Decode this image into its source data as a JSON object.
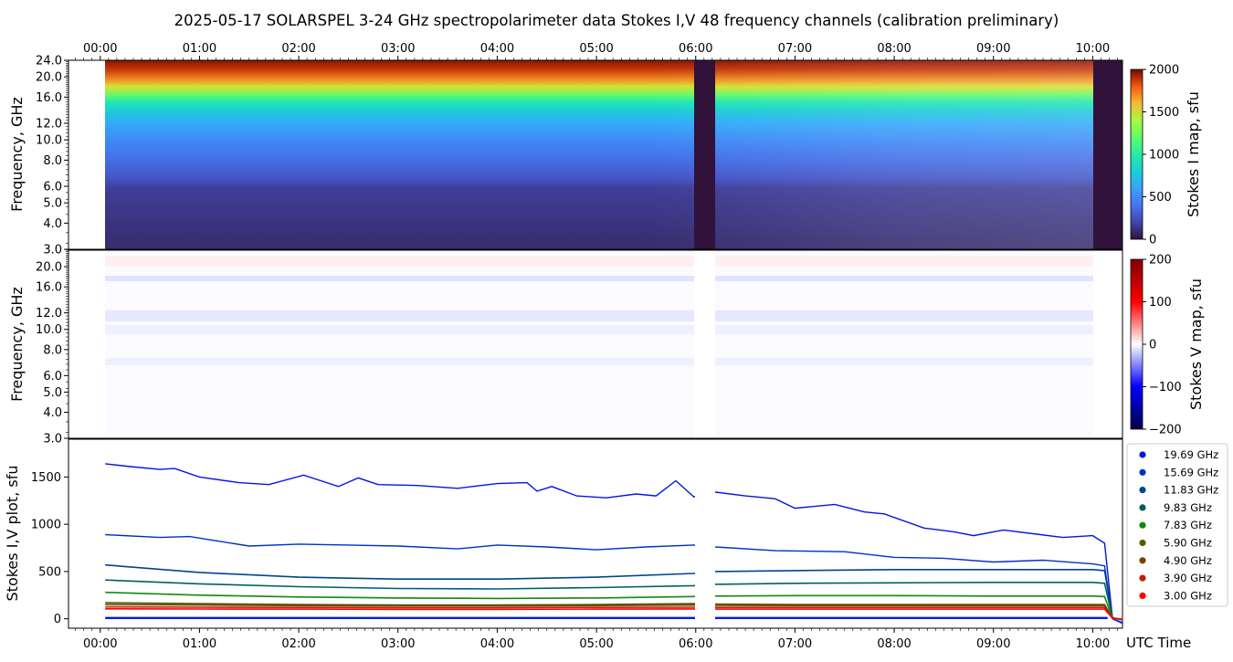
{
  "title": "2025-05-17  SOLARSPEL  3-24 GHz spectropolarimeter data   Stokes I,V   48 frequency channels   (calibration preliminary)",
  "chart_data": [
    {
      "type": "heatmap",
      "name": "stokes-i-map",
      "ylabel": "Frequency, GHz",
      "yticks": [
        "3.0",
        "4.0",
        "5.0",
        "6.0",
        "8.0",
        "10.0",
        "12.0",
        "16.0",
        "20.0",
        "24.0"
      ],
      "yscale": "log",
      "ylim": [
        3.0,
        24.0
      ],
      "xticks": [
        "00:00",
        "01:00",
        "02:00",
        "03:00",
        "04:00",
        "05:00",
        "06:00",
        "07:00",
        "08:00",
        "09:00",
        "10:00"
      ],
      "xlim_hours": [
        -0.32,
        10.3
      ],
      "colorbar": {
        "label": "Stokes I map, sfu",
        "ticks": [
          "0",
          "500",
          "1000",
          "1500",
          "2000"
        ],
        "range": [
          0,
          2000
        ],
        "colormap": "turbo"
      },
      "data_start_hours": 0.05,
      "data_end_hours": 10.2,
      "gaps_hours": [
        [
          6.0,
          6.2
        ]
      ]
    },
    {
      "type": "heatmap",
      "name": "stokes-v-map",
      "ylabel": "Frequency, GHz",
      "yticks": [
        "3.0",
        "4.0",
        "5.0",
        "6.0",
        "8.0",
        "10.0",
        "12.0",
        "16.0",
        "20.0"
      ],
      "yscale": "log",
      "ylim": [
        3.0,
        24.0
      ],
      "colorbar": {
        "label": "Stokes V map, sfu",
        "ticks": [
          "200",
          "100",
          "0",
          "−100",
          "−200"
        ],
        "range": [
          -200,
          200
        ],
        "colormap": "seismic"
      }
    },
    {
      "type": "line",
      "name": "stokes-iv-plot",
      "ylabel": "Stokes I,V plot, sfu",
      "xlabel": "UTC Time",
      "ylim": [
        -100,
        1900
      ],
      "yticks": [
        "0",
        "500",
        "1000",
        "1500"
      ],
      "xticks": [
        "00:00",
        "01:00",
        "02:00",
        "03:00",
        "04:00",
        "05:00",
        "06:00",
        "07:00",
        "08:00",
        "09:00",
        "10:00"
      ],
      "legend_position": "right",
      "series": [
        {
          "name": "19.69 GHz",
          "color": "#0018e0",
          "x": [
            0.05,
            0.3,
            0.6,
            0.75,
            1.0,
            1.4,
            1.7,
            2.05,
            2.4,
            2.6,
            2.8,
            3.2,
            3.6,
            4.0,
            4.3,
            4.4,
            4.55,
            4.8,
            5.1,
            5.4,
            5.6,
            5.8,
            5.98,
            6.2,
            6.5,
            6.8,
            7.0,
            7.4,
            7.7,
            7.9,
            8.3,
            8.6,
            8.8,
            9.1,
            9.4,
            9.7,
            10.0,
            10.12,
            10.2,
            10.3
          ],
          "y": [
            1640,
            1610,
            1580,
            1590,
            1500,
            1440,
            1420,
            1520,
            1400,
            1490,
            1420,
            1410,
            1380,
            1430,
            1440,
            1350,
            1400,
            1300,
            1280,
            1320,
            1300,
            1460,
            1290,
            1340,
            1300,
            1270,
            1170,
            1210,
            1130,
            1110,
            960,
            920,
            880,
            940,
            900,
            860,
            880,
            800,
            0,
            -50
          ]
        },
        {
          "name": "15.69 GHz",
          "color": "#0030c8",
          "x": [
            0.05,
            0.6,
            0.9,
            1.5,
            2.0,
            2.5,
            3.0,
            3.6,
            4.0,
            4.5,
            5.0,
            5.5,
            5.98,
            6.2,
            6.8,
            7.5,
            8.0,
            8.5,
            9.0,
            9.5,
            10.0,
            10.12,
            10.2,
            10.3
          ],
          "y": [
            890,
            860,
            870,
            770,
            790,
            780,
            770,
            740,
            780,
            760,
            730,
            760,
            780,
            760,
            720,
            710,
            650,
            640,
            600,
            620,
            580,
            560,
            0,
            -40
          ]
        },
        {
          "name": "11.83 GHz",
          "color": "#004490",
          "x": [
            0.05,
            1.0,
            2.0,
            3.0,
            4.0,
            5.0,
            5.98,
            6.2,
            7.0,
            8.0,
            9.0,
            10.0,
            10.12,
            10.2,
            10.3
          ],
          "y": [
            570,
            490,
            440,
            420,
            420,
            440,
            480,
            500,
            510,
            520,
            520,
            520,
            510,
            10,
            -10
          ]
        },
        {
          "name": "9.83 GHz",
          "color": "#006060",
          "x": [
            0.05,
            1.0,
            2.0,
            3.0,
            4.0,
            5.0,
            5.98,
            6.2,
            7.0,
            8.0,
            9.0,
            10.0,
            10.12,
            10.2,
            10.3
          ],
          "y": [
            410,
            370,
            340,
            320,
            315,
            330,
            350,
            365,
            375,
            380,
            385,
            385,
            375,
            10,
            -10
          ]
        },
        {
          "name": "7.83 GHz",
          "color": "#108a10",
          "x": [
            0.05,
            1.0,
            2.0,
            3.0,
            4.0,
            5.0,
            5.98,
            6.2,
            7.0,
            8.0,
            9.0,
            10.0,
            10.12,
            10.2,
            10.3
          ],
          "y": [
            280,
            250,
            230,
            220,
            215,
            220,
            235,
            240,
            245,
            245,
            240,
            240,
            235,
            5,
            -5
          ]
        },
        {
          "name": "5.90 GHz",
          "color": "#4a6000",
          "x": [
            0.05,
            1.0,
            2.0,
            3.0,
            4.0,
            5.0,
            5.98,
            6.2,
            7.0,
            8.0,
            9.0,
            10.0,
            10.12,
            10.2,
            10.3
          ],
          "y": [
            170,
            160,
            150,
            145,
            145,
            150,
            160,
            155,
            150,
            150,
            150,
            150,
            150,
            5,
            -5
          ]
        },
        {
          "name": "4.90 GHz",
          "color": "#7a4000",
          "x": [
            0.05,
            1.0,
            2.0,
            3.0,
            4.0,
            5.0,
            5.98,
            6.2,
            7.0,
            8.0,
            9.0,
            10.0,
            10.12,
            10.2,
            10.3
          ],
          "y": [
            150,
            145,
            140,
            138,
            138,
            140,
            145,
            142,
            140,
            140,
            140,
            140,
            140,
            5,
            -5
          ]
        },
        {
          "name": "3.90 GHz",
          "color": "#c02000",
          "x": [
            0.05,
            1.0,
            2.0,
            3.0,
            4.0,
            5.0,
            5.98,
            6.2,
            7.0,
            8.0,
            9.0,
            10.0,
            10.12,
            10.2,
            10.3
          ],
          "y": [
            125,
            122,
            120,
            118,
            118,
            120,
            122,
            120,
            120,
            120,
            120,
            120,
            120,
            5,
            -5
          ]
        },
        {
          "name": "3.00 GHz",
          "color": "#ff0000",
          "x": [
            0.05,
            1.0,
            2.0,
            3.0,
            4.0,
            5.0,
            5.98,
            6.2,
            7.0,
            8.0,
            9.0,
            10.0,
            10.12,
            10.2,
            10.3
          ],
          "y": [
            105,
            103,
            102,
            100,
            100,
            102,
            104,
            102,
            102,
            102,
            102,
            102,
            102,
            5,
            -5
          ]
        }
      ]
    }
  ]
}
